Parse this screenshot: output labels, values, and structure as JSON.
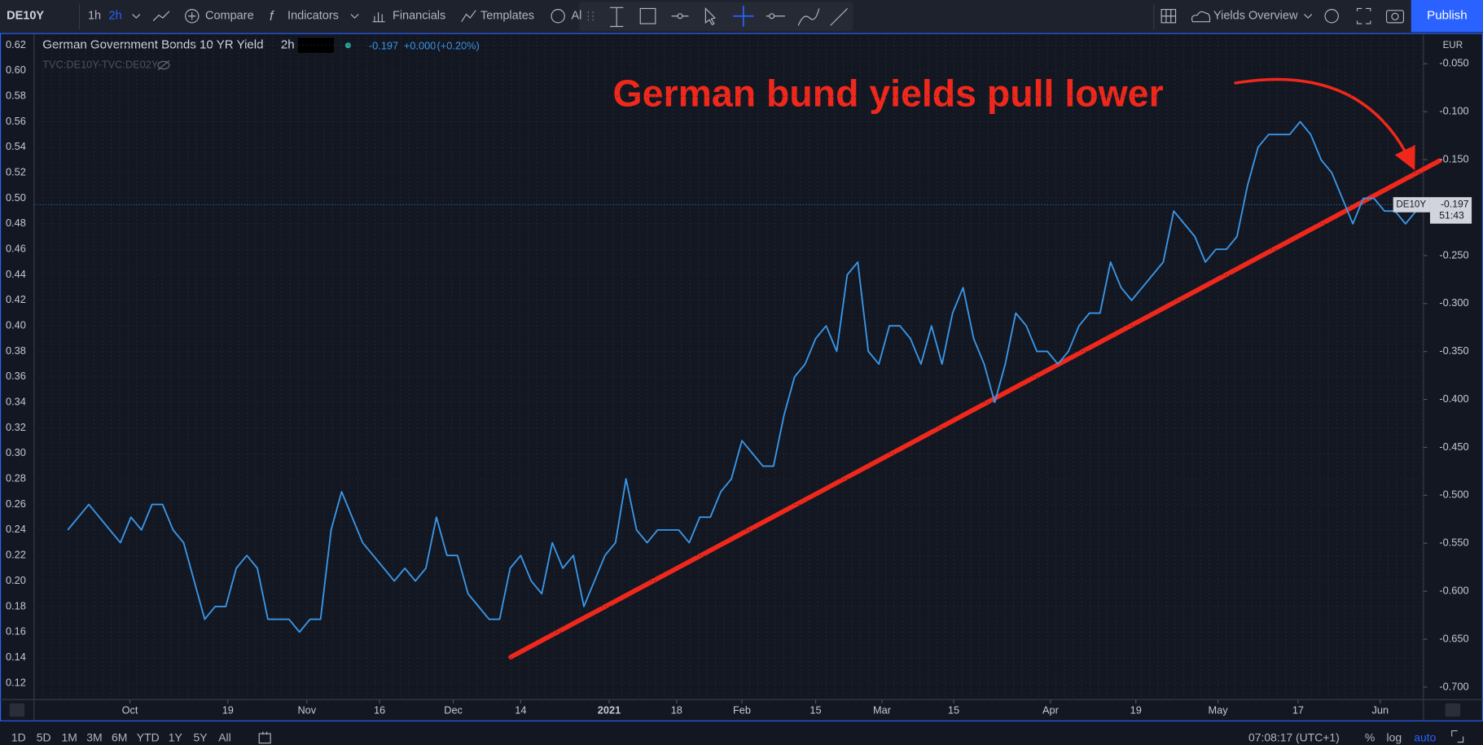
{
  "toolbar": {
    "symbol": "DE10Y",
    "intervals": [
      "1h",
      "2h"
    ],
    "buttons": [
      "Compare",
      "Indicators",
      "Financials",
      "Templates",
      "Al"
    ],
    "layout": "Yields Overview",
    "publish": "Publish"
  },
  "legend": {
    "title": "German Government Bonds 10 YR Yield",
    "interval": "2h",
    "last": "-0.197",
    "change": "+0.000",
    "change_pct": "(+0.20%)",
    "symbol": "TVC:DE10Y-TVC:DE02Y"
  },
  "chart_data": {
    "type": "line",
    "annotation": "German bund yields pull lower",
    "currency": "EUR",
    "series": [
      {
        "name": "DE10Y",
        "color": "#3a96e6",
        "values": [
          0.24,
          0.25,
          0.26,
          0.25,
          0.24,
          0.23,
          0.25,
          0.24,
          0.26,
          0.26,
          0.24,
          0.23,
          0.2,
          0.17,
          0.18,
          0.18,
          0.21,
          0.22,
          0.21,
          0.17,
          0.17,
          0.17,
          0.16,
          0.17,
          0.17,
          0.24,
          0.27,
          0.25,
          0.23,
          0.22,
          0.21,
          0.2,
          0.21,
          0.2,
          0.21,
          0.25,
          0.22,
          0.22,
          0.19,
          0.18,
          0.17,
          0.17,
          0.21,
          0.22,
          0.2,
          0.19,
          0.23,
          0.21,
          0.22,
          0.18,
          0.2,
          0.22,
          0.23,
          0.28,
          0.24,
          0.23,
          0.24,
          0.24,
          0.24,
          0.23,
          0.25,
          0.25,
          0.27,
          0.28,
          0.31,
          0.3,
          0.29,
          0.29,
          0.33,
          0.36,
          0.37,
          0.39,
          0.4,
          0.38,
          0.44,
          0.45,
          0.38,
          0.37,
          0.4,
          0.4,
          0.39,
          0.37,
          0.4,
          0.37,
          0.41,
          0.43,
          0.39,
          0.37,
          0.34,
          0.37,
          0.41,
          0.4,
          0.38,
          0.38,
          0.37,
          0.38,
          0.4,
          0.41,
          0.41,
          0.45,
          0.43,
          0.42,
          0.43,
          0.44,
          0.45,
          0.49,
          0.48,
          0.47,
          0.45,
          0.46,
          0.46,
          0.47,
          0.51,
          0.54,
          0.55,
          0.55,
          0.55,
          0.56,
          0.55,
          0.53,
          0.52,
          0.5,
          0.48,
          0.5,
          0.5,
          0.49,
          0.49,
          0.48,
          0.49
        ]
      }
    ],
    "price_label": {
      "name": "DE10Y",
      "value": -0.197,
      "countdown": "51:43"
    },
    "xlim": [
      -3.2,
      128.7
    ],
    "xticks": [
      {
        "value": 5.9,
        "label": "Oct"
      },
      {
        "value": 15.2,
        "label": "19"
      },
      {
        "value": 22.7,
        "label": "Nov"
      },
      {
        "value": 29.6,
        "label": "16"
      },
      {
        "value": 36.6,
        "label": "Dec"
      },
      {
        "value": 43.0,
        "label": "14"
      },
      {
        "value": 51.4,
        "label": "2021"
      },
      {
        "value": 57.8,
        "label": "18"
      },
      {
        "value": 64.0,
        "label": "Feb"
      },
      {
        "value": 71.0,
        "label": "15"
      },
      {
        "value": 77.3,
        "label": "Mar"
      },
      {
        "value": 84.1,
        "label": "15"
      },
      {
        "value": 93.3,
        "label": "Apr"
      },
      {
        "value": 101.4,
        "label": "19"
      },
      {
        "value": 109.2,
        "label": "May"
      },
      {
        "value": 116.8,
        "label": "17"
      },
      {
        "value": 124.6,
        "label": "Jun"
      }
    ],
    "ylim": [
      0.107,
      0.628
    ],
    "yticks": [
      0.62,
      {
        "value": 0.6,
        "label": "0.60"
      },
      0.58,
      0.56,
      0.54,
      0.52,
      {
        "value": 0.5,
        "label": "0.50"
      },
      0.48,
      0.46,
      0.44,
      0.42,
      {
        "value": 0.4,
        "label": "0.40"
      },
      0.38,
      0.36,
      0.34,
      0.32,
      {
        "value": 0.3,
        "label": "0.30"
      },
      0.28,
      0.26,
      0.24,
      0.22,
      {
        "value": 0.2,
        "label": "0.20"
      },
      0.18,
      0.16,
      0.14,
      0.12
    ],
    "y2lim": [
      -0.713,
      -0.02
    ],
    "y2ticks": [
      {
        "value": -0.05,
        "label": "-0.050"
      },
      {
        "value": -0.1,
        "label": "-0.100"
      },
      {
        "value": -0.15,
        "label": "-0.150"
      },
      {
        "value": -0.2,
        "label": "-0.200"
      },
      {
        "value": -0.25,
        "label": "-0.250"
      },
      {
        "value": -0.3,
        "label": "-0.300"
      },
      {
        "value": -0.35,
        "label": "-0.350"
      },
      {
        "value": -0.4,
        "label": "-0.400"
      },
      {
        "value": -0.45,
        "label": "-0.450"
      },
      {
        "value": -0.5,
        "label": "-0.500"
      },
      {
        "value": -0.55,
        "label": "-0.550"
      },
      {
        "value": -0.6,
        "label": "-0.600"
      },
      {
        "value": -0.65,
        "label": "-0.650"
      },
      {
        "value": -0.7,
        "label": "-0.700"
      }
    ],
    "grid": true
  },
  "footer": {
    "ranges": [
      "1D",
      "5D",
      "1M",
      "3M",
      "6M",
      "YTD",
      "1Y",
      "5Y",
      "All"
    ],
    "clock": "07:08:17 (UTC+1)",
    "percent": "%",
    "log": "log",
    "auto": "auto"
  }
}
